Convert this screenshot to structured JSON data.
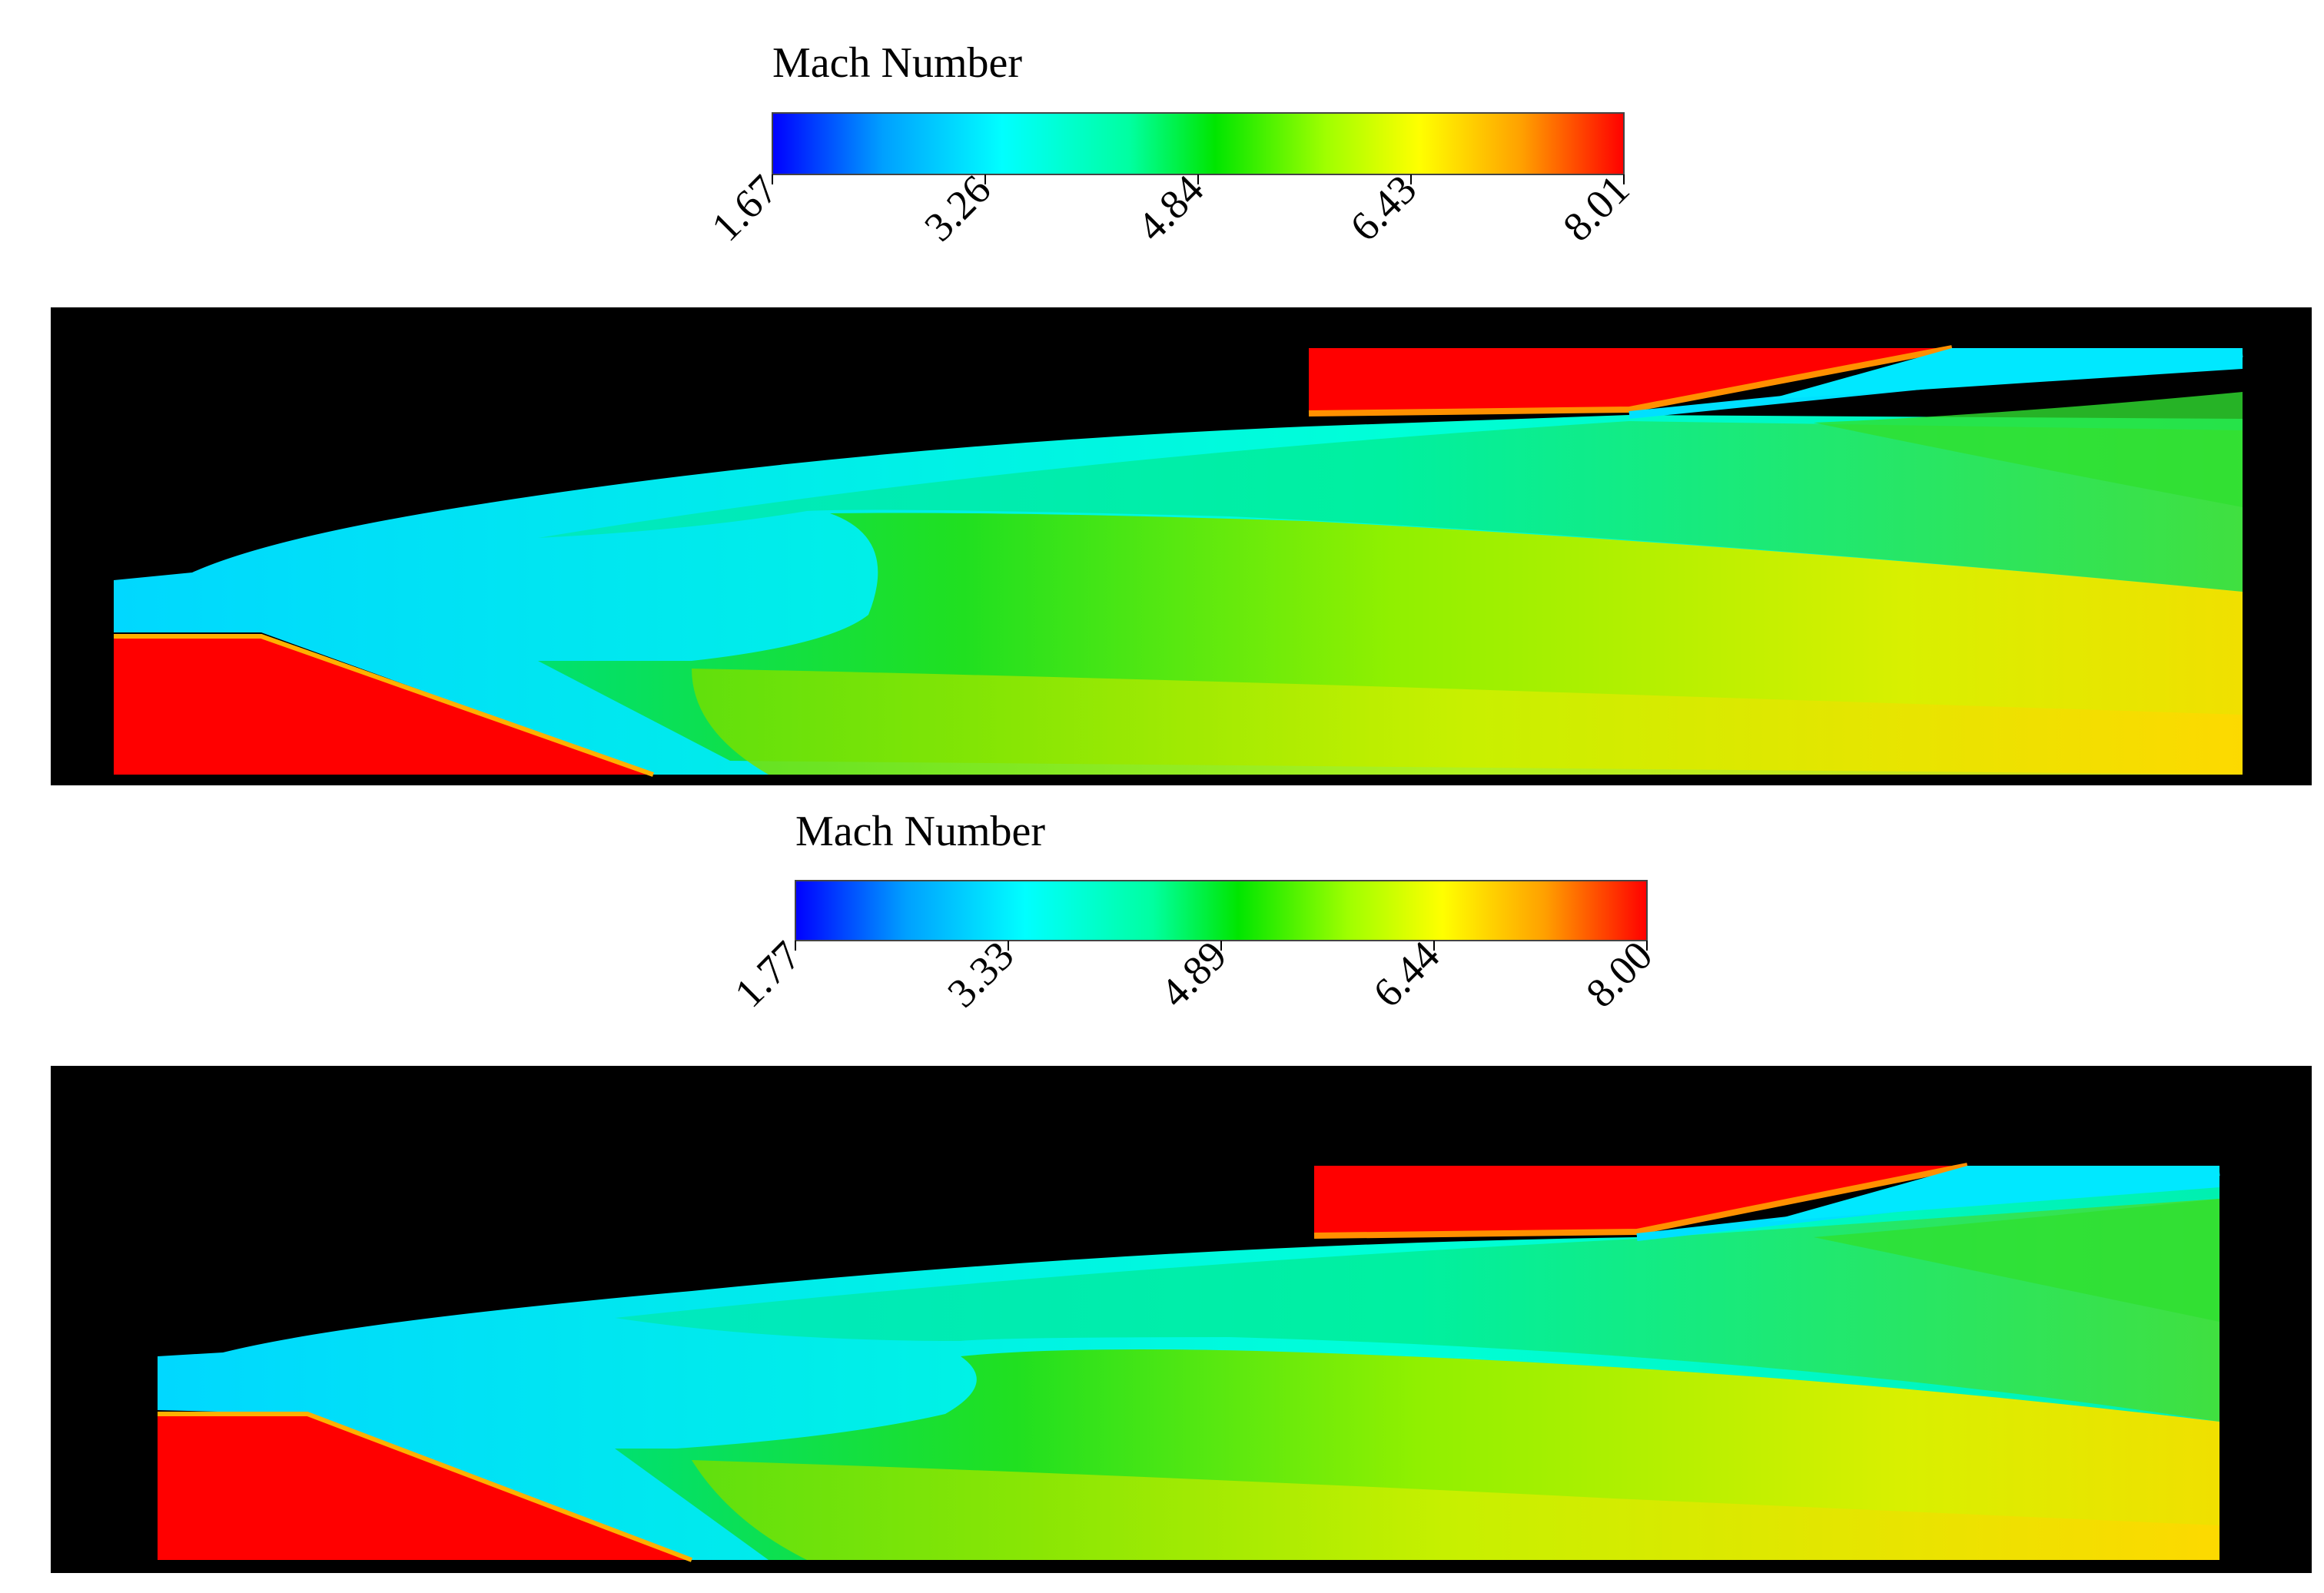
{
  "panels": [
    {
      "id": "top",
      "colorbar": {
        "title": "Mach Number",
        "ticks": [
          "1.67",
          "3.26",
          "4.84",
          "6.43",
          "8.01"
        ]
      }
    },
    {
      "id": "bottom",
      "colorbar": {
        "title": "Mach Number",
        "ticks": [
          "1.77",
          "3.33",
          "4.89",
          "6.44",
          "8.00"
        ]
      }
    }
  ],
  "colors": {
    "background": "#000000",
    "wall": "#ff0000",
    "colormap": [
      "#0000ff",
      "#00a0ff",
      "#00ffff",
      "#00ffa0",
      "#00e600",
      "#a0ff00",
      "#ffff00",
      "#ffa000",
      "#ff0000"
    ]
  }
}
